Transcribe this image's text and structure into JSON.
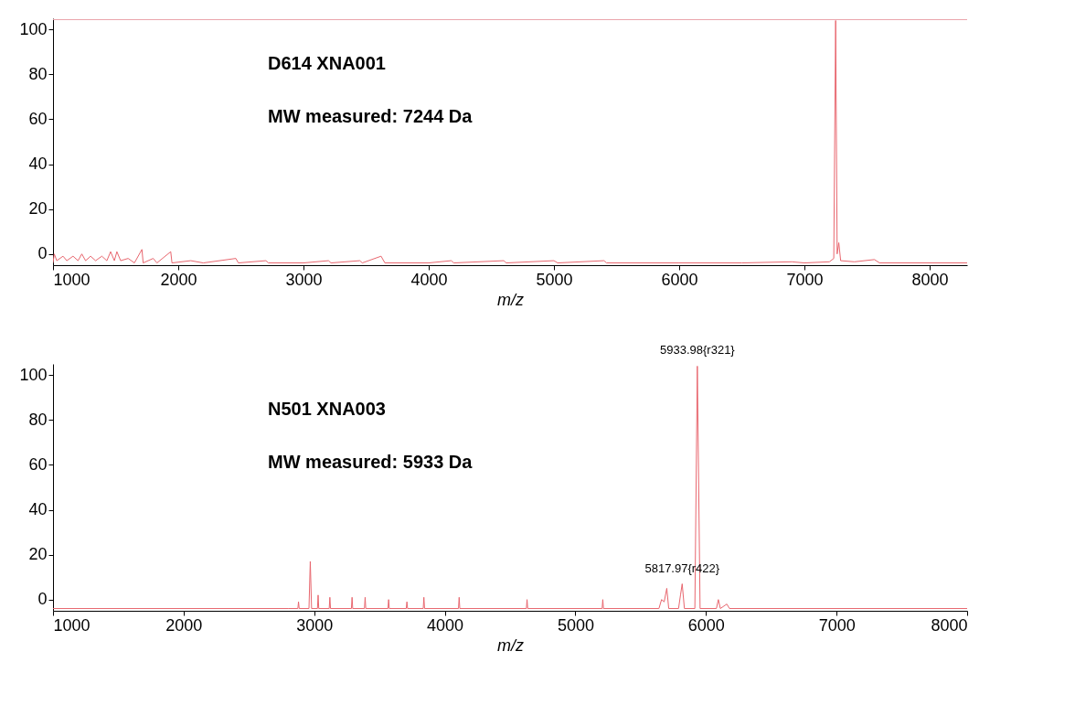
{
  "chart_data": [
    {
      "type": "line",
      "xlabel": "m/z",
      "xlim": [
        1000,
        8300
      ],
      "ylim": [
        -5,
        105
      ],
      "xticks": [
        1000,
        2000,
        3000,
        4000,
        5000,
        6000,
        7000,
        8000
      ],
      "yticks": [
        0,
        20,
        40,
        60,
        80,
        100
      ],
      "grid": false,
      "annotations": [
        "D614 XNA001",
        "MW measured: 7244 Da"
      ],
      "ref_lines": [
        {
          "axis": "y",
          "value": 104.4,
          "label": null,
          "color": "#eaa3aa"
        }
      ],
      "series": [
        {
          "color": "#e8666e",
          "x": [
            1000,
            1010,
            1030,
            1080,
            1110,
            1160,
            1200,
            1230,
            1260,
            1300,
            1340,
            1390,
            1430,
            1460,
            1490,
            1510,
            1540,
            1600,
            1650,
            1710,
            1720,
            1800,
            1830,
            1940,
            1950,
            2100,
            2200,
            2460,
            2480,
            2700,
            2720,
            3000,
            3200,
            3220,
            3450,
            3470,
            3620,
            3650,
            4000,
            4180,
            4200,
            4600,
            4620,
            5000,
            5030,
            5400,
            5420,
            6000,
            6500,
            6900,
            7000,
            7200,
            7235,
            7250,
            7262,
            7275,
            7290,
            7400,
            7560,
            7600,
            8300
          ],
          "values": [
            -4,
            0,
            -3,
            -1,
            -3,
            -1,
            -3,
            0,
            -3,
            -1,
            -3,
            -1,
            -3,
            1,
            -3,
            1,
            -3,
            -2,
            -4,
            2,
            -4,
            -2,
            -4,
            1,
            -4,
            -3,
            -4,
            -2,
            -4,
            -3,
            -4,
            -4,
            -3,
            -4,
            -3,
            -4,
            -1,
            -4,
            -4,
            -3,
            -4,
            -3,
            -4,
            -3,
            -4,
            -3,
            -4,
            -4,
            -4,
            -3.5,
            -4,
            -3.5,
            -2,
            104,
            0,
            5,
            -3,
            -3.5,
            -2.5,
            -4,
            -4
          ]
        }
      ]
    },
    {
      "type": "line",
      "xlabel": "m/z",
      "xlim": [
        1000,
        8000
      ],
      "ylim": [
        -5,
        105
      ],
      "xticks": [
        1000,
        2000,
        3000,
        4000,
        5000,
        6000,
        7000,
        8000
      ],
      "yticks": [
        0,
        20,
        40,
        60,
        80,
        100
      ],
      "grid": false,
      "annotations": [
        "N501 XNA003",
        "MW measured: 5933 Da",
        {
          "text": "5933.98{r321}",
          "x": 5933.98,
          "y": 104
        },
        {
          "text": "5817.97{r422}",
          "x": 5817.97,
          "y": 7
        }
      ],
      "series": [
        {
          "color": "#e8666e",
          "x": [
            1000,
            2800,
            2875,
            2880,
            2885,
            2960,
            2970,
            2980,
            3025,
            3030,
            3035,
            3115,
            3120,
            3125,
            3285,
            3290,
            3295,
            3385,
            3390,
            3395,
            3565,
            3570,
            3575,
            3705,
            3710,
            3715,
            3835,
            3840,
            3845,
            4105,
            4110,
            4115,
            4625,
            4630,
            4635,
            5205,
            5210,
            5215,
            5640,
            5660,
            5680,
            5700,
            5715,
            5790,
            5805,
            5817.97,
            5835,
            5915,
            5933.98,
            5955,
            6080,
            6095,
            6110,
            6160,
            6180,
            8000
          ],
          "values": [
            -4,
            -4,
            -4,
            -1,
            -4,
            -4,
            17,
            -4,
            -4,
            2,
            -4,
            -4,
            1,
            -4,
            -4,
            1,
            -4,
            -4,
            1,
            -4,
            -4,
            0,
            -4,
            -4,
            -1,
            -4,
            -4,
            1,
            -4,
            -4,
            1,
            -4,
            -4,
            0,
            -4,
            -4,
            0,
            -4,
            -4,
            0,
            -1,
            5,
            -4,
            -4,
            2,
            7,
            -4,
            -4,
            104,
            -4,
            -4,
            0,
            -4,
            -2,
            -4,
            -4
          ]
        }
      ]
    }
  ]
}
